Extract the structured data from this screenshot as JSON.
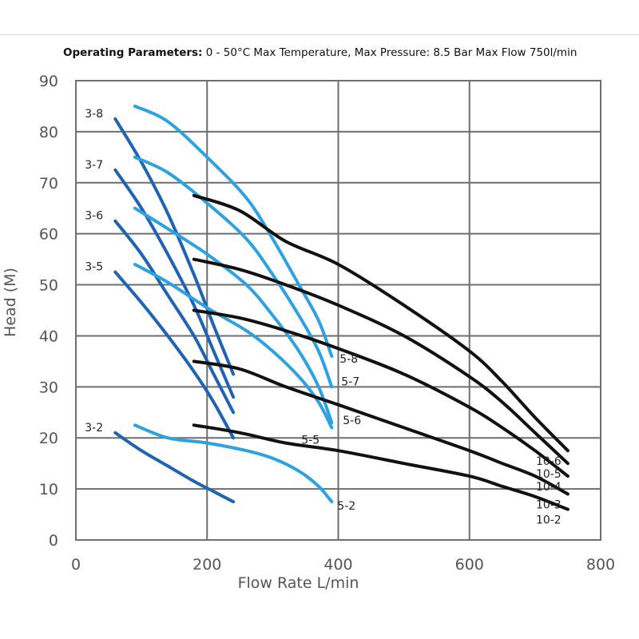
{
  "header": {
    "label": "Operating Parameters:",
    "text": " 0 - 50°C Max Temperature, Max Pressure: 8.5 Bar Max Flow 750l/min"
  },
  "chart_data": {
    "type": "line",
    "title": "",
    "xlabel": "Flow Rate L/min",
    "ylabel": "Head (M)",
    "xlim": [
      0,
      800
    ],
    "ylim": [
      0,
      90
    ],
    "xticks": [
      0,
      200,
      400,
      600,
      800
    ],
    "yticks": [
      0,
      10,
      20,
      30,
      40,
      50,
      60,
      70,
      80,
      90
    ],
    "grid": true,
    "series": [
      {
        "name": "3-8",
        "color": "#1f63b4",
        "points": [
          [
            60,
            82.5
          ],
          [
            100,
            74
          ],
          [
            140,
            64
          ],
          [
            180,
            52
          ],
          [
            210,
            42
          ],
          [
            240,
            32.5
          ]
        ]
      },
      {
        "name": "3-7",
        "color": "#1f63b4",
        "points": [
          [
            60,
            72.5
          ],
          [
            100,
            65
          ],
          [
            140,
            56
          ],
          [
            180,
            46
          ],
          [
            210,
            37
          ],
          [
            240,
            28
          ]
        ]
      },
      {
        "name": "3-6",
        "color": "#1f63b4",
        "points": [
          [
            60,
            62.5
          ],
          [
            100,
            56
          ],
          [
            140,
            48
          ],
          [
            180,
            40
          ],
          [
            210,
            32.5
          ],
          [
            240,
            25
          ]
        ]
      },
      {
        "name": "3-5",
        "color": "#1f63b4",
        "points": [
          [
            60,
            52.5
          ],
          [
            100,
            46.5
          ],
          [
            140,
            40
          ],
          [
            180,
            33
          ],
          [
            210,
            27
          ],
          [
            240,
            20
          ]
        ]
      },
      {
        "name": "3-2",
        "color": "#1f63b4",
        "points": [
          [
            60,
            21
          ],
          [
            100,
            17.5
          ],
          [
            140,
            14.5
          ],
          [
            180,
            11.5
          ],
          [
            210,
            9.5
          ],
          [
            240,
            7.5
          ]
        ]
      },
      {
        "name": "5-8",
        "color": "#2ea2e0",
        "points": [
          [
            90,
            85
          ],
          [
            140,
            82
          ],
          [
            200,
            75
          ],
          [
            260,
            67
          ],
          [
            300,
            59
          ],
          [
            340,
            50
          ],
          [
            370,
            43
          ],
          [
            390,
            36
          ]
        ]
      },
      {
        "name": "5-7",
        "color": "#2ea2e0",
        "points": [
          [
            90,
            75
          ],
          [
            140,
            72
          ],
          [
            200,
            66
          ],
          [
            260,
            59
          ],
          [
            300,
            52
          ],
          [
            340,
            44
          ],
          [
            370,
            37
          ],
          [
            390,
            30
          ]
        ]
      },
      {
        "name": "5-6",
        "color": "#2ea2e0",
        "points": [
          [
            90,
            65
          ],
          [
            140,
            61
          ],
          [
            200,
            56
          ],
          [
            260,
            50
          ],
          [
            300,
            44
          ],
          [
            340,
            37
          ],
          [
            370,
            30
          ],
          [
            390,
            23
          ]
        ]
      },
      {
        "name": "5-5",
        "color": "#2ea2e0",
        "points": [
          [
            90,
            54
          ],
          [
            140,
            50.5
          ],
          [
            200,
            45.5
          ],
          [
            260,
            41
          ],
          [
            300,
            37
          ],
          [
            340,
            32
          ],
          [
            370,
            27
          ],
          [
            390,
            22
          ]
        ]
      },
      {
        "name": "5-2",
        "color": "#2ea2e0",
        "points": [
          [
            90,
            22.5
          ],
          [
            140,
            20
          ],
          [
            200,
            19
          ],
          [
            260,
            17.5
          ],
          [
            300,
            16
          ],
          [
            340,
            13.5
          ],
          [
            370,
            10.5
          ],
          [
            390,
            7.5
          ]
        ]
      },
      {
        "name": "10-6",
        "color": "#111111",
        "points": [
          [
            180,
            67.5
          ],
          [
            250,
            64.5
          ],
          [
            320,
            58.5
          ],
          [
            400,
            54
          ],
          [
            500,
            46
          ],
          [
            600,
            37
          ],
          [
            650,
            31
          ],
          [
            700,
            24
          ],
          [
            750,
            17.5
          ]
        ]
      },
      {
        "name": "10-5",
        "color": "#111111",
        "points": [
          [
            180,
            55
          ],
          [
            250,
            53
          ],
          [
            320,
            50
          ],
          [
            400,
            46
          ],
          [
            500,
            40
          ],
          [
            600,
            32
          ],
          [
            650,
            27
          ],
          [
            700,
            21
          ],
          [
            750,
            15
          ]
        ]
      },
      {
        "name": "10-4",
        "color": "#111111",
        "points": [
          [
            180,
            45
          ],
          [
            250,
            43.5
          ],
          [
            320,
            41
          ],
          [
            400,
            37.5
          ],
          [
            500,
            32.5
          ],
          [
            600,
            26
          ],
          [
            650,
            22
          ],
          [
            700,
            17.5
          ],
          [
            750,
            12.5
          ]
        ]
      },
      {
        "name": "10-3",
        "color": "#111111",
        "points": [
          [
            180,
            35
          ],
          [
            250,
            33.5
          ],
          [
            320,
            30
          ],
          [
            400,
            26.5
          ],
          [
            500,
            22
          ],
          [
            600,
            17.5
          ],
          [
            650,
            15
          ],
          [
            700,
            12.5
          ],
          [
            750,
            9
          ]
        ]
      },
      {
        "name": "10-2",
        "color": "#111111",
        "points": [
          [
            180,
            22.5
          ],
          [
            250,
            21
          ],
          [
            320,
            19
          ],
          [
            400,
            17.5
          ],
          [
            500,
            15
          ],
          [
            600,
            12.5
          ],
          [
            650,
            10.5
          ],
          [
            700,
            8.5
          ],
          [
            750,
            6
          ]
        ]
      }
    ]
  }
}
